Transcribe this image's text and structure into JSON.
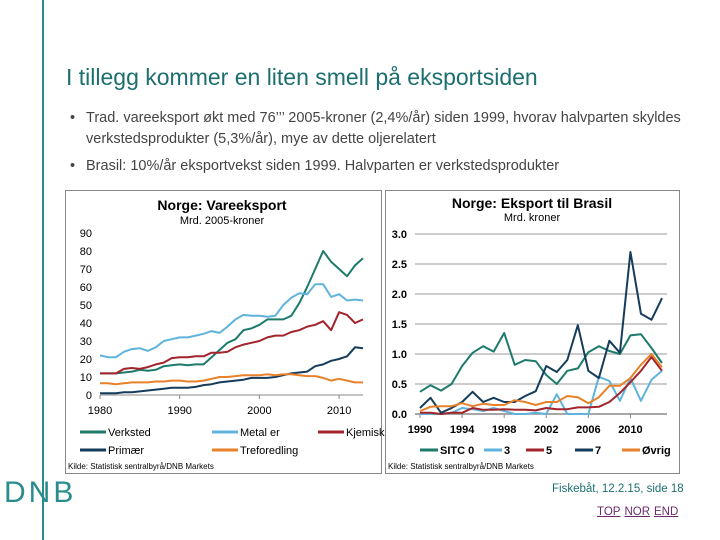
{
  "slide": {
    "title": "I tillegg kommer en liten smell på eksportsiden",
    "bullets": [
      "Trad. vareeksport økt med 76’’’ 2005-kroner (2,4%/år) siden 1999, hvorav halvparten skyldes verkstedsprodukter (5,3%/år), mye av dette oljerelatert",
      "Brasil: 10%/år eksportvekst siden 1999. Halvparten er verkstedsprodukter"
    ],
    "logo": "DNB",
    "footer": "Fiskebåt, 12.2.15, side 18",
    "links": [
      "TOP",
      "NOR",
      "END"
    ]
  },
  "chart_data": [
    {
      "type": "line",
      "title": "Norge: Vareeksport",
      "subtitle": "Mrd. 2005-kroner",
      "source": "Kilde: Statistisk sentralbyrå/DNB Markets",
      "ylim": [
        0,
        90
      ],
      "yticks": [
        "0",
        "10",
        "20",
        "30",
        "40",
        "50",
        "60",
        "70",
        "80",
        "90"
      ],
      "xticks": [
        "1980",
        "1990",
        "2000",
        "2010"
      ],
      "x_start": 1980,
      "x_end": 2013,
      "legend": "bottom",
      "grid": false,
      "series": [
        {
          "name": "Verksted",
          "color": "#1e7b6c",
          "values": [
            12,
            12,
            12,
            12.5,
            13,
            14,
            13.5,
            14,
            16,
            16.5,
            17,
            16.5,
            17,
            17,
            21,
            25,
            29,
            31,
            36,
            37,
            39,
            42,
            42,
            42,
            44,
            51,
            60,
            70,
            80,
            74,
            70,
            66,
            72,
            76
          ]
        },
        {
          "name": "Metal er",
          "color": "#5fb3dd",
          "values": [
            22,
            21,
            21,
            24,
            25.5,
            26,
            24.5,
            26.5,
            30,
            31,
            32,
            32,
            33,
            34,
            35.5,
            34.5,
            38,
            42,
            44.5,
            44,
            44,
            43.5,
            44,
            50,
            54,
            56.5,
            56,
            61.5,
            61.5,
            54.5,
            56,
            52.5,
            53,
            52.5
          ]
        },
        {
          "name": "Kjemisk",
          "color": "#a3242b",
          "values": [
            12,
            12,
            12,
            14.5,
            15,
            14.5,
            15.5,
            17,
            18,
            20.5,
            21,
            21,
            21.5,
            21.5,
            23.5,
            23.5,
            24,
            26.5,
            28,
            29,
            30,
            32,
            33,
            33,
            35,
            36,
            38,
            39,
            41,
            36,
            46,
            44.5,
            40,
            42
          ]
        },
        {
          "name": "Primær",
          "color": "#163c5c",
          "values": [
            1,
            1,
            1,
            1.5,
            1.5,
            2,
            2.5,
            3,
            3.5,
            4,
            4,
            4,
            4.5,
            5.5,
            6,
            7,
            7.5,
            8,
            8.5,
            9.5,
            9.5,
            9.5,
            10,
            11,
            12,
            12.5,
            13,
            16,
            17,
            19,
            20,
            21.5,
            26.5,
            26
          ]
        },
        {
          "name": "Treforedling",
          "color": "#e8822a",
          "values": [
            6.5,
            6.5,
            6,
            6.5,
            7,
            7,
            7,
            7.5,
            7.5,
            8,
            8,
            7.5,
            7.5,
            8,
            9,
            10,
            10,
            10.5,
            11,
            11,
            11,
            11.5,
            11,
            11.5,
            11.5,
            11,
            10.5,
            10.5,
            9.5,
            8,
            9,
            8,
            7,
            7
          ]
        }
      ]
    },
    {
      "type": "line",
      "title": "Norge: Eksport til Brasil",
      "subtitle": "Mrd. kroner",
      "source": "Kilde: Statistisk sentralbyrå/DNB Markets",
      "ylim": [
        0,
        3
      ],
      "yticks": [
        "0.0",
        "0.5",
        "1.0",
        "1.5",
        "2.0",
        "2.5",
        "3.0"
      ],
      "xticks": [
        "1990",
        "1994",
        "1998",
        "2002",
        "2006",
        "2010"
      ],
      "x_start": 1990,
      "x_end": 2013,
      "legend": "bottom",
      "grid": true,
      "series": [
        {
          "name": "SITC 0",
          "color": "#1e7b6c",
          "values": [
            0.37,
            0.48,
            0.39,
            0.5,
            0.8,
            1.02,
            1.13,
            1.04,
            1.35,
            0.82,
            0.9,
            0.88,
            0.65,
            0.5,
            0.72,
            0.76,
            1.03,
            1.13,
            1.05,
            1.0,
            1.31,
            1.33,
            1.1,
            0.85
          ]
        },
        {
          "name": "3",
          "color": "#5fb3dd",
          "values": [
            0,
            0,
            0,
            0.02,
            0.1,
            0.08,
            0.05,
            0.1,
            0.05,
            0,
            0,
            0.02,
            0,
            0.33,
            0,
            0,
            0,
            0.62,
            0.55,
            0.22,
            0.6,
            0.22,
            0.57,
            0.72
          ]
        },
        {
          "name": "5",
          "color": "#a3242b",
          "values": [
            0.02,
            0.02,
            0,
            0.02,
            0.02,
            0.1,
            0.07,
            0.07,
            0.08,
            0.07,
            0.07,
            0.06,
            0.1,
            0.08,
            0.08,
            0.11,
            0.11,
            0.12,
            0.2,
            0.35,
            0.53,
            0.72,
            0.95,
            0.72
          ]
        },
        {
          "name": "7",
          "color": "#163c5c",
          "values": [
            0.1,
            0.27,
            0.02,
            0.1,
            0.2,
            0.37,
            0.2,
            0.27,
            0.2,
            0.2,
            0.3,
            0.38,
            0.8,
            0.7,
            0.9,
            1.48,
            0.72,
            0.6,
            1.22,
            1.02,
            2.7,
            1.67,
            1.57,
            1.93
          ]
        },
        {
          "name": "Øvrig",
          "color": "#e8822a",
          "values": [
            0.05,
            0.12,
            0.13,
            0.13,
            0.18,
            0.13,
            0.17,
            0.15,
            0.15,
            0.23,
            0.2,
            0.15,
            0.2,
            0.2,
            0.3,
            0.28,
            0.18,
            0.28,
            0.47,
            0.47,
            0.6,
            0.82,
            1.0,
            0.78
          ]
        }
      ]
    }
  ]
}
